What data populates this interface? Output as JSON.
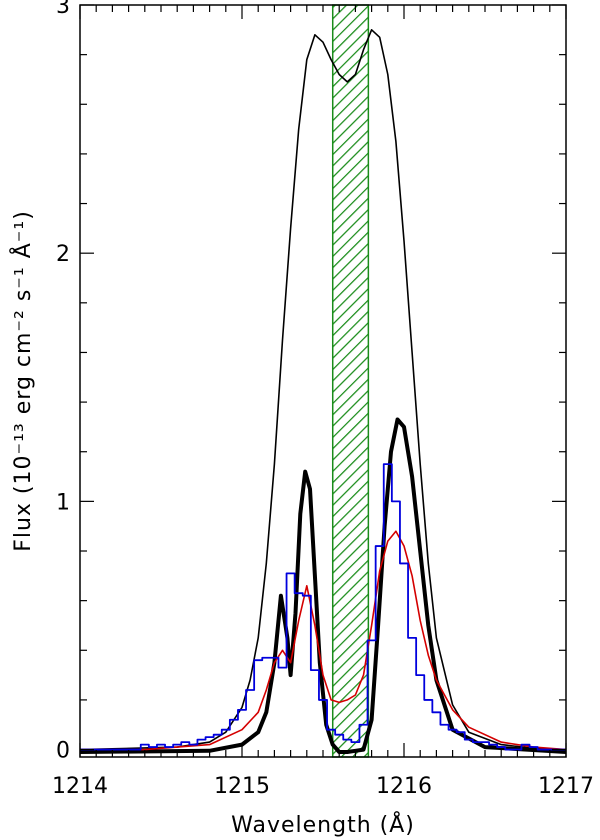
{
  "chart_data": {
    "type": "line",
    "title": "",
    "xlabel": "Wavelength (Å)",
    "ylabel": "Flux (10⁻¹³ erg cm⁻² s⁻¹ Å⁻¹)",
    "xlim": [
      1214.0,
      1217.0
    ],
    "ylim": [
      -0.03,
      3.0
    ],
    "x_ticks": [
      1214,
      1215,
      1216,
      1217
    ],
    "x_tick_labels": [
      "1214",
      "1215",
      "1216",
      "1217"
    ],
    "y_ticks": [
      0,
      1,
      2,
      3
    ],
    "y_tick_labels": [
      "0",
      "1",
      "2",
      "3"
    ],
    "grid": false,
    "legend": "none",
    "shaded_region": {
      "x": [
        1215.56,
        1215.78
      ],
      "style": "diagonal hatch",
      "color": "#1a8c1a"
    },
    "series": [
      {
        "style": "thin-black-line",
        "color": "#000000",
        "x": [
          1214.0,
          1214.6,
          1214.8,
          1214.9,
          1215.0,
          1215.05,
          1215.1,
          1215.15,
          1215.2,
          1215.25,
          1215.3,
          1215.35,
          1215.4,
          1215.45,
          1215.5,
          1215.55,
          1215.6,
          1215.65,
          1215.7,
          1215.75,
          1215.8,
          1215.85,
          1215.9,
          1215.95,
          1216.0,
          1216.05,
          1216.1,
          1216.15,
          1216.2,
          1216.3,
          1216.4,
          1216.6,
          1216.8,
          1217.0
        ],
        "y": [
          0.0,
          0.01,
          0.03,
          0.07,
          0.17,
          0.28,
          0.45,
          0.75,
          1.15,
          1.65,
          2.1,
          2.5,
          2.78,
          2.88,
          2.85,
          2.78,
          2.72,
          2.69,
          2.72,
          2.82,
          2.9,
          2.87,
          2.72,
          2.45,
          2.05,
          1.6,
          1.15,
          0.75,
          0.45,
          0.18,
          0.07,
          0.02,
          0.005,
          0.0
        ]
      },
      {
        "style": "thick-black-line",
        "color": "#000000",
        "x": [
          1214.0,
          1214.8,
          1215.0,
          1215.1,
          1215.15,
          1215.2,
          1215.24,
          1215.28,
          1215.3,
          1215.33,
          1215.36,
          1215.39,
          1215.42,
          1215.45,
          1215.48,
          1215.52,
          1215.56,
          1215.6,
          1215.65,
          1215.7,
          1215.75,
          1215.8,
          1215.84,
          1215.88,
          1215.92,
          1215.96,
          1216.0,
          1216.05,
          1216.1,
          1216.15,
          1216.2,
          1216.3,
          1216.5,
          1217.0
        ],
        "y": [
          -0.01,
          -0.005,
          0.02,
          0.07,
          0.15,
          0.35,
          0.62,
          0.45,
          0.3,
          0.55,
          0.95,
          1.12,
          1.05,
          0.7,
          0.35,
          0.1,
          0.02,
          -0.01,
          -0.01,
          -0.005,
          0.0,
          0.12,
          0.5,
          0.9,
          1.2,
          1.33,
          1.3,
          1.1,
          0.8,
          0.5,
          0.28,
          0.08,
          0.01,
          -0.01
        ]
      },
      {
        "style": "thin-red-line",
        "color": "#d40000",
        "x": [
          1214.0,
          1214.4,
          1214.8,
          1215.0,
          1215.1,
          1215.15,
          1215.2,
          1215.25,
          1215.3,
          1215.35,
          1215.4,
          1215.45,
          1215.5,
          1215.55,
          1215.6,
          1215.65,
          1215.7,
          1215.75,
          1215.8,
          1215.85,
          1215.9,
          1215.95,
          1216.0,
          1216.05,
          1216.1,
          1216.15,
          1216.2,
          1216.3,
          1216.4,
          1216.6,
          1216.8,
          1217.0
        ],
        "y": [
          0.0,
          0.0,
          0.02,
          0.08,
          0.15,
          0.24,
          0.35,
          0.4,
          0.35,
          0.52,
          0.66,
          0.5,
          0.3,
          0.2,
          0.19,
          0.2,
          0.22,
          0.3,
          0.5,
          0.72,
          0.84,
          0.88,
          0.82,
          0.7,
          0.52,
          0.38,
          0.28,
          0.16,
          0.09,
          0.03,
          0.01,
          0.0
        ]
      },
      {
        "style": "blue-histogram",
        "color": "#0000dd",
        "x": [
          1214.0,
          1214.05,
          1214.1,
          1214.15,
          1214.2,
          1214.25,
          1214.3,
          1214.35,
          1214.4,
          1214.45,
          1214.5,
          1214.55,
          1214.6,
          1214.65,
          1214.7,
          1214.75,
          1214.8,
          1214.85,
          1214.9,
          1214.95,
          1215.0,
          1215.05,
          1215.1,
          1215.15,
          1215.2,
          1215.25,
          1215.3,
          1215.35,
          1215.4,
          1215.45,
          1215.5,
          1215.55,
          1215.6,
          1215.65,
          1215.7,
          1215.75,
          1215.8,
          1215.85,
          1215.9,
          1215.95,
          1216.0,
          1216.05,
          1216.1,
          1216.15,
          1216.2,
          1216.25,
          1216.3,
          1216.35,
          1216.4,
          1216.45,
          1216.5,
          1216.55,
          1216.6,
          1216.65,
          1216.7,
          1216.75,
          1216.8,
          1216.85,
          1216.9,
          1216.95,
          1217.0
        ],
        "y": [
          0.0,
          0.0,
          0.0,
          0.0,
          0.0,
          0.0,
          0.0,
          0.0,
          0.02,
          0.01,
          0.02,
          0.01,
          0.02,
          0.03,
          0.02,
          0.04,
          0.05,
          0.06,
          0.08,
          0.12,
          0.16,
          0.24,
          0.36,
          0.37,
          0.37,
          0.33,
          0.71,
          0.63,
          0.62,
          0.32,
          0.2,
          0.08,
          0.06,
          0.04,
          0.03,
          0.1,
          0.44,
          0.82,
          1.15,
          1.0,
          0.75,
          0.45,
          0.3,
          0.2,
          0.15,
          0.1,
          0.08,
          0.07,
          0.04,
          0.03,
          0.03,
          0.02,
          0.01,
          0.0,
          0.0,
          0.02,
          0.01,
          0.0,
          0.0,
          0.0,
          0.0
        ]
      }
    ]
  }
}
